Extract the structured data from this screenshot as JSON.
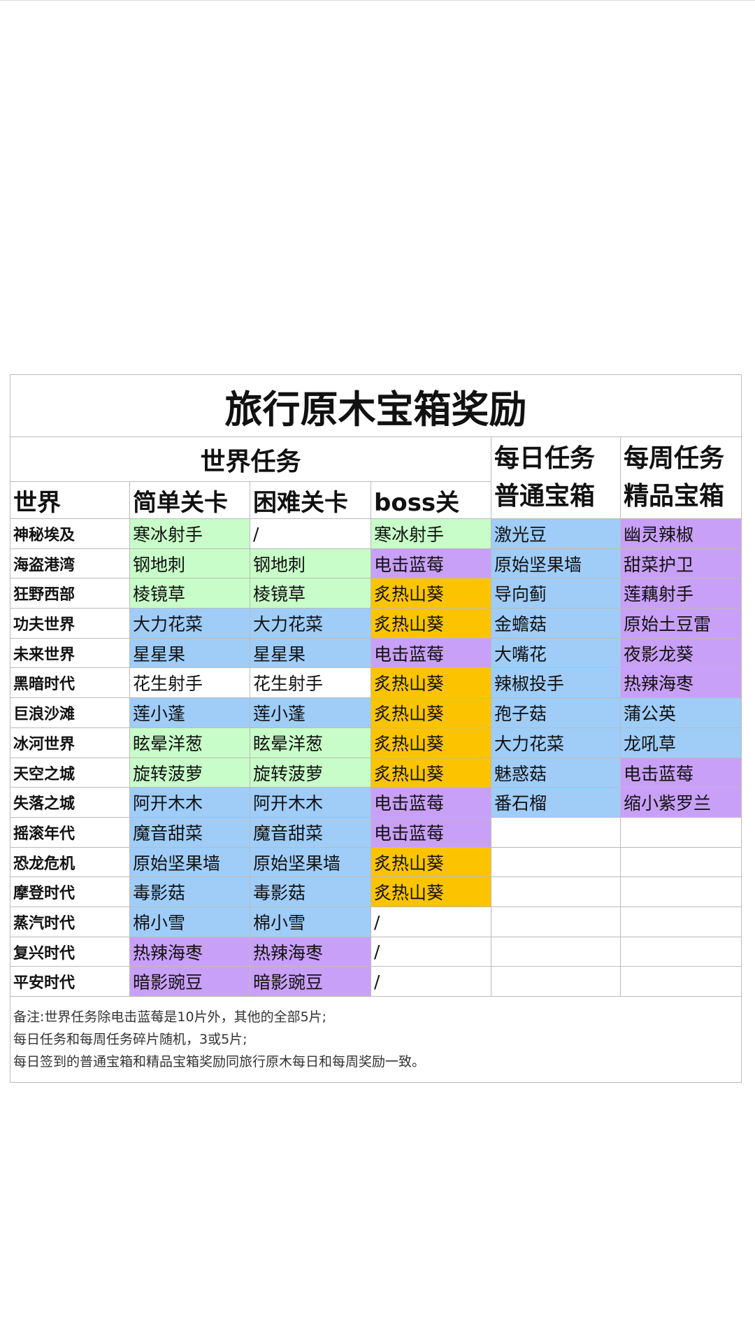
{
  "title": "旅行原木宝箱奖励",
  "header": {
    "group_world": "世界任务",
    "daily": [
      "每日任务",
      "普通宝箱"
    ],
    "weekly": [
      "每周任务",
      "精品宝箱"
    ],
    "columns": [
      "世界",
      "简单关卡",
      "困难关卡",
      "boss关"
    ]
  },
  "palette": {
    "white": "#ffffff",
    "green": "#c8fcc8",
    "blue": "#9fcdf8",
    "purple": "#c9a0f7",
    "orange": "#fcc400"
  },
  "table": {
    "rows": [
      [
        "神秘埃及",
        "寒冰射手",
        "/",
        "寒冰射手",
        "激光豆",
        "幽灵辣椒"
      ],
      [
        "海盗港湾",
        "钢地刺",
        "钢地刺",
        "电击蓝莓",
        "原始坚果墙",
        "甜菜护卫"
      ],
      [
        "狂野西部",
        "棱镜草",
        "棱镜草",
        "炙热山葵",
        "导向蓟",
        "莲藕射手"
      ],
      [
        "功夫世界",
        "大力花菜",
        "大力花菜",
        "炙热山葵",
        "金蟾菇",
        "原始土豆雷"
      ],
      [
        "未来世界",
        "星星果",
        "星星果",
        "电击蓝莓",
        "大嘴花",
        "夜影龙葵"
      ],
      [
        "黑暗时代",
        "花生射手",
        "花生射手",
        "炙热山葵",
        "辣椒投手",
        "热辣海枣"
      ],
      [
        "巨浪沙滩",
        "莲小蓬",
        "莲小蓬",
        "炙热山葵",
        "孢子菇",
        "蒲公英"
      ],
      [
        "冰河世界",
        "眩晕洋葱",
        "眩晕洋葱",
        "炙热山葵",
        "大力花菜",
        "龙吼草"
      ],
      [
        "天空之城",
        "旋转菠萝",
        "旋转菠萝",
        "炙热山葵",
        "魅惑菇",
        "电击蓝莓"
      ],
      [
        "失落之城",
        "阿开木木",
        "阿开木木",
        "电击蓝莓",
        "番石榴",
        "缩小紫罗兰"
      ],
      [
        "摇滚年代",
        "魔音甜菜",
        "魔音甜菜",
        "电击蓝莓",
        null,
        null
      ],
      [
        "恐龙危机",
        "原始坚果墙",
        "原始坚果墙",
        "炙热山葵",
        null,
        null
      ],
      [
        "摩登时代",
        "毒影菇",
        "毒影菇",
        "炙热山葵",
        null,
        null
      ],
      [
        "蒸汽时代",
        "棉小雪",
        "棉小雪",
        "/",
        null,
        null
      ],
      [
        "复兴时代",
        "热辣海枣",
        "热辣海枣",
        "/",
        null,
        null
      ],
      [
        "平安时代",
        "暗影豌豆",
        "暗影豌豆",
        "/",
        null,
        null
      ]
    ],
    "colors": [
      [
        "white",
        "green",
        "white",
        "green",
        "blue",
        "purple"
      ],
      [
        "white",
        "green",
        "green",
        "purple",
        "blue",
        "purple"
      ],
      [
        "white",
        "green",
        "green",
        "orange",
        "blue",
        "purple"
      ],
      [
        "white",
        "blue",
        "blue",
        "orange",
        "blue",
        "purple"
      ],
      [
        "white",
        "blue",
        "blue",
        "purple",
        "blue",
        "purple"
      ],
      [
        "white",
        "white",
        "white",
        "orange",
        "blue",
        "purple"
      ],
      [
        "white",
        "blue",
        "blue",
        "orange",
        "blue",
        "blue"
      ],
      [
        "white",
        "green",
        "green",
        "orange",
        "blue",
        "blue"
      ],
      [
        "white",
        "green",
        "green",
        "orange",
        "blue",
        "purple"
      ],
      [
        "white",
        "blue",
        "blue",
        "purple",
        "blue",
        "purple"
      ],
      [
        "white",
        "blue",
        "blue",
        "purple",
        "white",
        "white"
      ],
      [
        "white",
        "blue",
        "blue",
        "orange",
        "white",
        "white"
      ],
      [
        "white",
        "blue",
        "blue",
        "orange",
        "white",
        "white"
      ],
      [
        "white",
        "blue",
        "blue",
        "white",
        "white",
        "white"
      ],
      [
        "white",
        "purple",
        "purple",
        "white",
        "white",
        "white"
      ],
      [
        "white",
        "purple",
        "purple",
        "white",
        "white",
        "white"
      ]
    ]
  },
  "notes": [
    "备注:世界任务除电击蓝莓是10片外，其他的全部5片;",
    "每日任务和每周任务碎片随机，3或5片;",
    "每日签到的普通宝箱和精品宝箱奖励同旅行原木每日和每周奖励一致。"
  ]
}
